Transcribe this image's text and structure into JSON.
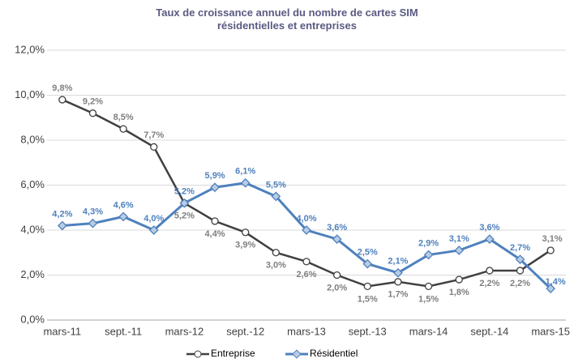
{
  "chart_data": {
    "type": "line",
    "title": "Taux de croissance annuel du nombre de cartes SIM résidentielles et entreprises",
    "categories": [
      "mars-11",
      null,
      "sept.-11",
      null,
      "mars-12",
      null,
      "sept.-12",
      null,
      "mars-13",
      null,
      "sept.-13",
      null,
      "mars-14",
      null,
      "sept.-14",
      null,
      "mars-15"
    ],
    "series": [
      {
        "name": "Entreprise",
        "color": "#404040",
        "values": [
          9.8,
          9.2,
          8.5,
          7.7,
          5.2,
          4.4,
          3.9,
          3.0,
          2.6,
          2.0,
          1.5,
          1.7,
          1.5,
          1.8,
          2.2,
          2.2,
          3.1
        ],
        "value_labels": [
          "9,8%",
          "9,2%",
          "8,5%",
          "7,7%",
          "5,2%",
          "4,4%",
          "3,9%",
          "3,0%",
          "2,6%",
          "2,0%",
          "1,5%",
          "1,7%",
          "1,5%",
          "1,8%",
          "2,2%",
          "2,2%",
          "3,1%"
        ]
      },
      {
        "name": "Résidentiel",
        "color": "#4f81bd",
        "values": [
          4.2,
          4.3,
          4.6,
          4.0,
          5.2,
          5.9,
          6.1,
          5.5,
          4.0,
          3.6,
          2.5,
          2.1,
          2.9,
          3.1,
          3.6,
          2.7,
          1.4
        ],
        "value_labels": [
          "4,2%",
          "4,3%",
          "4,6%",
          "4,0%",
          "5,2%",
          "5,9%",
          "6,1%",
          "5,5%",
          "4,0%",
          "3,6%",
          "2,5%",
          "2,1%",
          "2,9%",
          "3,1%",
          "3,6%",
          "2,7%",
          "1,4%"
        ]
      }
    ],
    "ylim": [
      0,
      12
    ],
    "yticks": [
      {
        "value": 0,
        "label": "0,0%"
      },
      {
        "value": 2,
        "label": "2,0%"
      },
      {
        "value": 4,
        "label": "4,0%"
      },
      {
        "value": 6,
        "label": "6,0%"
      },
      {
        "value": 8,
        "label": "8,0%"
      },
      {
        "value": 10,
        "label": "10,0%"
      },
      {
        "value": 12,
        "label": "12,0%"
      }
    ],
    "grid": true,
    "legend": "bottom"
  }
}
